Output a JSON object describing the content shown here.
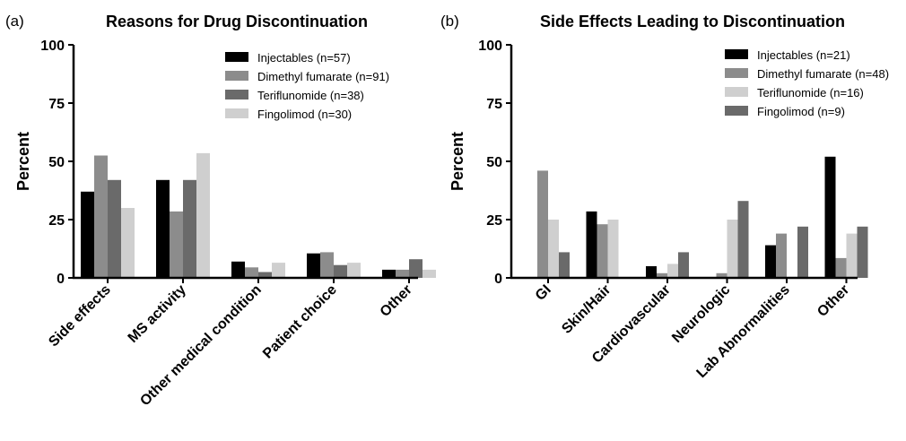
{
  "chart_data": [
    {
      "type": "bar",
      "panel_label": "(a)",
      "title": "Reasons for Drug Discontinuation",
      "xlabel": "",
      "ylabel": "Percent",
      "ylim": [
        0,
        100
      ],
      "yticks": [
        "0",
        "25",
        "50",
        "75",
        "100"
      ],
      "grid": false,
      "legend_position": "top-right",
      "categories": [
        "Side effects",
        "MS activity",
        "Other medical condition",
        "Patient choice",
        "Other"
      ],
      "series": [
        {
          "name": "Injectables (n=57)",
          "color": "#000000",
          "values": [
            37,
            42,
            7,
            10.5,
            3.5
          ]
        },
        {
          "name": "Dimethyl fumarate (n=91)",
          "color": "#8c8c8c",
          "values": [
            52.5,
            28.5,
            4.5,
            11,
            3.5
          ]
        },
        {
          "name": "Teriflunomide (n=38)",
          "color": "#6a6a6a",
          "values": [
            42,
            42,
            2.5,
            5.5,
            8
          ]
        },
        {
          "name": "Fingolimod (n=30)",
          "color": "#cfcfcf",
          "values": [
            30,
            53.5,
            6.5,
            6.5,
            3.5
          ]
        }
      ]
    },
    {
      "type": "bar",
      "panel_label": "(b)",
      "title": "Side Effects Leading to Discontinuation",
      "xlabel": "",
      "ylabel": "Percent",
      "ylim": [
        0,
        100
      ],
      "yticks": [
        "0",
        "25",
        "50",
        "75",
        "100"
      ],
      "grid": false,
      "legend_position": "top-right",
      "categories": [
        "GI",
        "Skin/Hair",
        "Cardiovascular",
        "Neurologic",
        "Lab Abnormalities",
        "Other"
      ],
      "series": [
        {
          "name": "Injectables (n=21)",
          "color": "#000000",
          "values": [
            0,
            28.5,
            5,
            0,
            14,
            52
          ]
        },
        {
          "name": "Dimethyl fumarate (n=48)",
          "color": "#8c8c8c",
          "values": [
            46,
            23,
            2,
            2,
            19,
            8.5
          ]
        },
        {
          "name": "Teriflunomide (n=16)",
          "color": "#cfcfcf",
          "values": [
            25,
            25,
            6,
            25,
            0,
            19
          ]
        },
        {
          "name": "Fingolimod  (n=9)",
          "color": "#6a6a6a",
          "values": [
            11,
            0,
            11,
            33,
            22,
            22
          ]
        }
      ]
    }
  ]
}
